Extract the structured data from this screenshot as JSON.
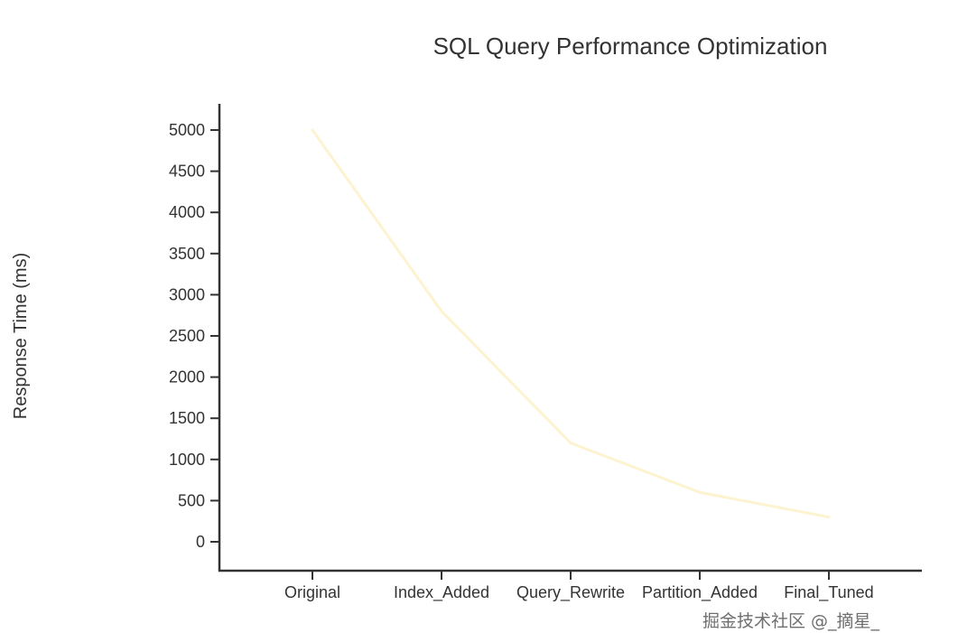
{
  "chart_data": {
    "type": "line",
    "title": "SQL Query Performance Optimization",
    "xlabel": "",
    "ylabel": "Response Time (ms)",
    "categories": [
      "Original",
      "Index_Added",
      "Query_Rewrite",
      "Partition_Added",
      "Final_Tuned"
    ],
    "series": [
      {
        "name": "Response Time",
        "values": [
          5000,
          2800,
          1200,
          600,
          300
        ],
        "color": "#fdf3d0"
      }
    ],
    "yticks": [
      0,
      500,
      1000,
      1500,
      2000,
      2500,
      3000,
      3500,
      4000,
      4500,
      5000
    ],
    "ylim": [
      -350,
      5300
    ],
    "grid": false
  },
  "watermark": "掘金技术社区 @_摘星_"
}
